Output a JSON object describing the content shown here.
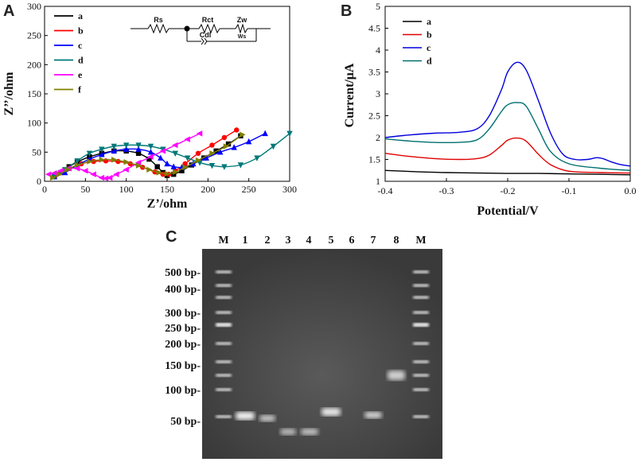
{
  "panels": {
    "A": {
      "letter": "A",
      "circuit": {
        "rs": "Rs",
        "rct": "Rct",
        "zw": "Zw",
        "ws": "Ws",
        "cdl": "Cdl"
      }
    },
    "B": {
      "letter": "B"
    },
    "C": {
      "letter": "C"
    }
  },
  "chart_data": [
    {
      "type": "scatter",
      "panel": "A",
      "title": "",
      "xlabel": "Z’/ohm",
      "ylabel": "Z’’/ohm",
      "xlim": [
        0,
        300
      ],
      "ylim": [
        0,
        300
      ],
      "xticks": [
        0,
        50,
        100,
        150,
        200,
        250,
        300
      ],
      "yticks": [
        0,
        50,
        100,
        150,
        200,
        250,
        300
      ],
      "legend_position": "top-left",
      "series": [
        {
          "name": "a",
          "color": "#000000",
          "marker": "square",
          "points": [
            [
              12,
              8
            ],
            [
              20,
              15
            ],
            [
              30,
              25
            ],
            [
              40,
              33
            ],
            [
              55,
              42
            ],
            [
              70,
              48
            ],
            [
              85,
              52
            ],
            [
              100,
              52
            ],
            [
              115,
              48
            ],
            [
              128,
              38
            ],
            [
              138,
              25
            ],
            [
              145,
              15
            ],
            [
              150,
              10
            ],
            [
              158,
              12
            ],
            [
              168,
              18
            ],
            [
              180,
              28
            ],
            [
              195,
              40
            ],
            [
              210,
              52
            ],
            [
              225,
              64
            ],
            [
              240,
              78
            ]
          ]
        },
        {
          "name": "b",
          "color": "#ff0000",
          "marker": "circle",
          "points": [
            [
              12,
              8
            ],
            [
              20,
              15
            ],
            [
              30,
              22
            ],
            [
              45,
              30
            ],
            [
              60,
              34
            ],
            [
              75,
              35
            ],
            [
              90,
              34
            ],
            [
              105,
              30
            ],
            [
              120,
              24
            ],
            [
              135,
              16
            ],
            [
              145,
              12
            ],
            [
              152,
              12
            ],
            [
              160,
              18
            ],
            [
              172,
              30
            ],
            [
              188,
              48
            ],
            [
              205,
              62
            ],
            [
              220,
              75
            ],
            [
              235,
              88
            ]
          ]
        },
        {
          "name": "c",
          "color": "#0000ff",
          "marker": "triangle-up",
          "points": [
            [
              12,
              8
            ],
            [
              25,
              15
            ],
            [
              40,
              28
            ],
            [
              55,
              38
            ],
            [
              70,
              46
            ],
            [
              85,
              52
            ],
            [
              100,
              55
            ],
            [
              115,
              55
            ],
            [
              130,
              50
            ],
            [
              142,
              40
            ],
            [
              150,
              30
            ],
            [
              158,
              25
            ],
            [
              168,
              24
            ],
            [
              182,
              30
            ],
            [
              198,
              40
            ],
            [
              215,
              50
            ],
            [
              232,
              58
            ],
            [
              250,
              68
            ],
            [
              270,
              82
            ]
          ]
        },
        {
          "name": "d",
          "color": "#007878",
          "marker": "triangle-down",
          "points": [
            [
              12,
              8
            ],
            [
              25,
              20
            ],
            [
              40,
              35
            ],
            [
              55,
              48
            ],
            [
              70,
              55
            ],
            [
              85,
              60
            ],
            [
              100,
              62
            ],
            [
              115,
              62
            ],
            [
              130,
              60
            ],
            [
              145,
              55
            ],
            [
              160,
              48
            ],
            [
              175,
              40
            ],
            [
              190,
              32
            ],
            [
              205,
              27
            ],
            [
              220,
              25
            ],
            [
              240,
              28
            ],
            [
              260,
              40
            ],
            [
              280,
              60
            ],
            [
              300,
              82
            ]
          ]
        },
        {
          "name": "e",
          "color": "#ff00ff",
          "marker": "triangle-left",
          "points": [
            [
              5,
              12
            ],
            [
              12,
              14
            ],
            [
              20,
              18
            ],
            [
              30,
              22
            ],
            [
              40,
              22
            ],
            [
              50,
              18
            ],
            [
              60,
              12
            ],
            [
              70,
              6
            ],
            [
              75,
              5
            ],
            [
              80,
              6
            ],
            [
              88,
              12
            ],
            [
              100,
              20
            ],
            [
              115,
              32
            ],
            [
              130,
              42
            ],
            [
              145,
              52
            ],
            [
              160,
              62
            ],
            [
              175,
              72
            ],
            [
              190,
              82
            ]
          ]
        },
        {
          "name": "f",
          "color": "#808000",
          "marker": "triangle-right",
          "points": [
            [
              10,
              6
            ],
            [
              18,
              12
            ],
            [
              28,
              20
            ],
            [
              40,
              28
            ],
            [
              55,
              34
            ],
            [
              70,
              37
            ],
            [
              85,
              37
            ],
            [
              100,
              33
            ],
            [
              115,
              27
            ],
            [
              128,
              20
            ],
            [
              140,
              15
            ],
            [
              150,
              13
            ],
            [
              160,
              16
            ],
            [
              172,
              24
            ],
            [
              188,
              36
            ],
            [
              205,
              48
            ],
            [
              222,
              60
            ],
            [
              242,
              80
            ]
          ]
        }
      ]
    },
    {
      "type": "line",
      "panel": "B",
      "title": "",
      "xlabel": "Potential/V",
      "ylabel": "Current/μA",
      "xlim": [
        -0.4,
        0.0
      ],
      "ylim": [
        1.0,
        5.0
      ],
      "xticks": [
        -0.4,
        -0.3,
        -0.2,
        -0.1,
        0.0
      ],
      "xtick_labels": [
        "-0.4",
        "-0.3",
        "-0.2",
        "-0.1",
        "0.0"
      ],
      "yticks": [
        1.0,
        1.5,
        2.0,
        2.5,
        3.0,
        3.5,
        4.0,
        4.5,
        5.0
      ],
      "ytick_labels": [
        "1",
        "1.5",
        "2",
        "2.5",
        "3",
        "3.5",
        "4",
        "4.5",
        "5"
      ],
      "legend_position": "top-left",
      "series": [
        {
          "name": "a",
          "color": "#000000",
          "points": [
            [
              -0.4,
              1.25
            ],
            [
              -0.35,
              1.22
            ],
            [
              -0.3,
              1.2
            ],
            [
              -0.25,
              1.19
            ],
            [
              -0.2,
              1.18
            ],
            [
              -0.15,
              1.18
            ],
            [
              -0.1,
              1.17
            ],
            [
              -0.05,
              1.16
            ],
            [
              0.0,
              1.15
            ]
          ]
        },
        {
          "name": "b",
          "color": "#e00000",
          "points": [
            [
              -0.4,
              1.64
            ],
            [
              -0.36,
              1.57
            ],
            [
              -0.32,
              1.52
            ],
            [
              -0.28,
              1.5
            ],
            [
              -0.25,
              1.52
            ],
            [
              -0.23,
              1.6
            ],
            [
              -0.21,
              1.82
            ],
            [
              -0.2,
              1.94
            ],
            [
              -0.185,
              1.99
            ],
            [
              -0.17,
              1.92
            ],
            [
              -0.15,
              1.62
            ],
            [
              -0.13,
              1.38
            ],
            [
              -0.1,
              1.23
            ],
            [
              -0.05,
              1.2
            ],
            [
              0.0,
              1.19
            ]
          ]
        },
        {
          "name": "c",
          "color": "#0000dd",
          "points": [
            [
              -0.4,
              2.0
            ],
            [
              -0.36,
              2.06
            ],
            [
              -0.32,
              2.1
            ],
            [
              -0.28,
              2.12
            ],
            [
              -0.25,
              2.2
            ],
            [
              -0.23,
              2.5
            ],
            [
              -0.21,
              3.1
            ],
            [
              -0.2,
              3.5
            ],
            [
              -0.185,
              3.72
            ],
            [
              -0.17,
              3.55
            ],
            [
              -0.15,
              2.85
            ],
            [
              -0.13,
              2.1
            ],
            [
              -0.11,
              1.62
            ],
            [
              -0.09,
              1.5
            ],
            [
              -0.07,
              1.5
            ],
            [
              -0.055,
              1.54
            ],
            [
              -0.045,
              1.52
            ],
            [
              -0.03,
              1.44
            ],
            [
              -0.015,
              1.38
            ],
            [
              0.0,
              1.35
            ]
          ]
        },
        {
          "name": "d",
          "color": "#007070",
          "points": [
            [
              -0.4,
              1.97
            ],
            [
              -0.36,
              1.92
            ],
            [
              -0.32,
              1.89
            ],
            [
              -0.28,
              1.89
            ],
            [
              -0.25,
              1.95
            ],
            [
              -0.23,
              2.2
            ],
            [
              -0.21,
              2.6
            ],
            [
              -0.2,
              2.75
            ],
            [
              -0.185,
              2.8
            ],
            [
              -0.17,
              2.72
            ],
            [
              -0.15,
              2.2
            ],
            [
              -0.13,
              1.68
            ],
            [
              -0.1,
              1.4
            ],
            [
              -0.05,
              1.3
            ],
            [
              0.0,
              1.25
            ]
          ]
        }
      ]
    }
  ],
  "gel": {
    "lane_labels": [
      "M",
      "1",
      "2",
      "3",
      "4",
      "5",
      "6",
      "7",
      "8",
      "M"
    ],
    "size_markers": [
      "500 bp-",
      "400 bp-",
      "300 bp-",
      "250 bp-",
      "200 bp-",
      "150 bp-",
      "100 bp-",
      "50 bp-"
    ]
  }
}
